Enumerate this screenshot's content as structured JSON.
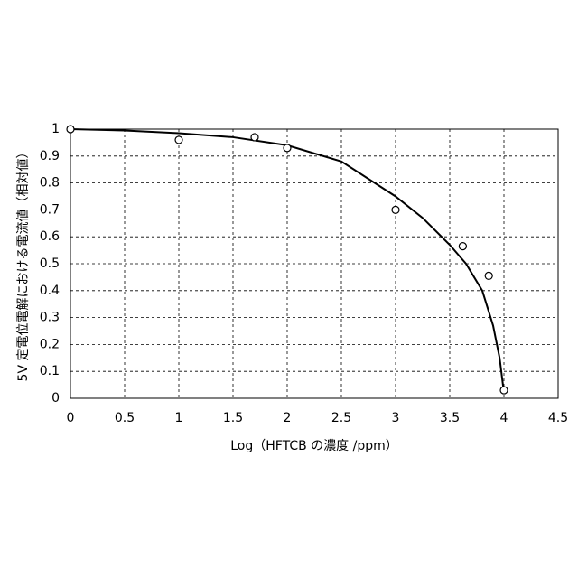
{
  "chart_data": {
    "type": "scatter",
    "x_label": "Log（HFTCB の濃度 /ppm）",
    "y_label": "5V 定電位電解における電流値（相対値）",
    "x": [
      0,
      1,
      1.7,
      2,
      3,
      3.62,
      3.86,
      4
    ],
    "values": [
      1,
      0.96,
      0.97,
      0.93,
      0.7,
      0.565,
      0.455,
      0.03
    ],
    "curve": {
      "x": [
        0,
        0.5,
        1,
        1.5,
        2,
        2.5,
        3,
        3.25,
        3.5,
        3.65,
        3.8,
        3.9,
        3.96,
        4
      ],
      "values": [
        1,
        0.995,
        0.985,
        0.97,
        0.94,
        0.88,
        0.75,
        0.67,
        0.57,
        0.5,
        0.4,
        0.27,
        0.15,
        0.02
      ]
    },
    "color": "#000000",
    "xlim": [
      0,
      4.5
    ],
    "xticks": [
      0,
      0.5,
      1,
      1.5,
      2,
      2.5,
      3,
      3.5,
      4,
      4.5
    ],
    "ylim": [
      0,
      1
    ],
    "yticks": [
      0,
      0.1,
      0.2,
      0.3,
      0.4,
      0.5,
      0.6,
      0.7,
      0.8,
      0.9,
      1
    ],
    "grid": true
  }
}
